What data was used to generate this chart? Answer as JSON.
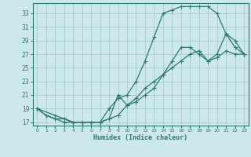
{
  "title": "",
  "xlabel": "Humidex (Indice chaleur)",
  "bg_color": "#cce8ea",
  "grid_color": "#aacccc",
  "line_color": "#2d7a6e",
  "xlim": [
    -0.5,
    23.5
  ],
  "ylim": [
    16.5,
    34.5
  ],
  "xticks": [
    0,
    1,
    2,
    3,
    4,
    5,
    6,
    7,
    8,
    9,
    10,
    11,
    12,
    13,
    14,
    15,
    16,
    17,
    18,
    19,
    20,
    21,
    22,
    23
  ],
  "yticks": [
    17,
    19,
    21,
    23,
    25,
    27,
    29,
    31,
    33
  ],
  "line1_x": [
    0,
    1,
    2,
    3,
    4,
    5,
    6,
    7,
    8,
    9,
    10,
    11,
    12,
    13,
    14,
    15,
    16,
    17,
    18,
    19,
    20,
    21,
    22,
    23
  ],
  "line1_y": [
    19,
    18,
    17.5,
    17,
    17,
    17,
    17,
    17,
    17.5,
    21,
    19.5,
    20,
    21,
    22,
    24,
    26,
    28,
    28,
    27,
    26,
    27,
    30,
    29,
    27
  ],
  "line2_x": [
    0,
    1,
    2,
    3,
    4,
    5,
    6,
    7,
    8,
    9,
    10,
    11,
    12,
    13,
    14,
    15,
    16,
    17,
    18,
    19,
    20,
    21,
    22,
    23
  ],
  "line2_y": [
    19,
    18,
    17.5,
    17.5,
    17,
    17,
    17,
    17,
    19,
    20.5,
    21,
    23,
    26,
    29.5,
    33,
    33.5,
    34,
    34,
    34,
    34,
    33,
    30,
    28,
    27
  ],
  "line3_x": [
    0,
    2,
    3,
    4,
    5,
    6,
    7,
    8,
    9,
    10,
    11,
    12,
    13,
    14,
    15,
    16,
    17,
    18,
    19,
    20,
    21,
    22,
    23
  ],
  "line3_y": [
    19,
    18,
    17.5,
    17,
    17,
    17,
    17,
    17.5,
    18,
    19.5,
    20.5,
    22,
    23,
    24,
    25,
    26,
    27,
    27.5,
    26,
    26.5,
    27.5,
    27,
    27
  ]
}
